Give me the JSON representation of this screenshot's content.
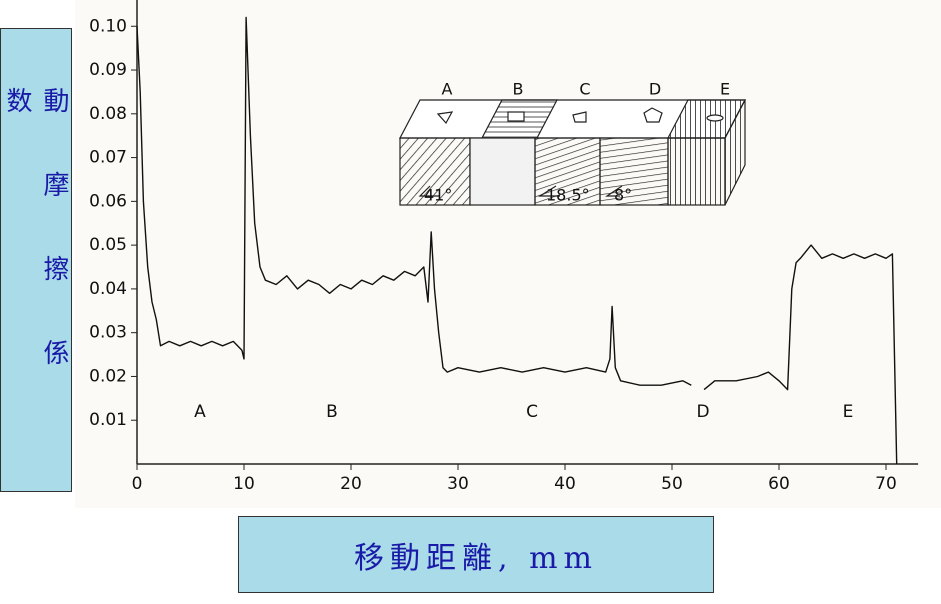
{
  "chart_data": {
    "type": "line",
    "y_label": "動摩擦係数",
    "x_label": "移動距離, mm",
    "xlim": [
      0,
      73
    ],
    "ylim": [
      0,
      0.106
    ],
    "xticks": [
      0,
      10,
      20,
      30,
      40,
      50,
      60,
      70
    ],
    "yticks": [
      0.01,
      0.02,
      0.03,
      0.04,
      0.05,
      0.06,
      0.07,
      0.08,
      0.09,
      {
        "value": 0.1,
        "label": "0.10"
      }
    ],
    "region_labels": [
      "A",
      "B",
      "C",
      "D",
      "E"
    ],
    "inset_labels": [
      "A",
      "B",
      "C",
      "D",
      "E"
    ],
    "inset_angles": [
      "41°",
      "18.5°",
      "8°"
    ],
    "series": [
      {
        "color": "#111111",
        "x": [
          0,
          0.3,
          0.6,
          1,
          1.4,
          1.8,
          2.2,
          3,
          4,
          5,
          6,
          7,
          8,
          9,
          9.8,
          10,
          10.2,
          10.6,
          11,
          11.5,
          12,
          13,
          14,
          15,
          16,
          17,
          18,
          19,
          20,
          21,
          22,
          23,
          24,
          25,
          26,
          26.8,
          27.2,
          27.5,
          27.8,
          28.2,
          28.6,
          29,
          30,
          32,
          34,
          36,
          38,
          40,
          42,
          43.8,
          44.2,
          44.4,
          44.7,
          45.2,
          47,
          49,
          51,
          51.8,
          52.4,
          53,
          54,
          56,
          58,
          59,
          60,
          60.8,
          61.2,
          61.6,
          62,
          63,
          64,
          65,
          66,
          67,
          68,
          69,
          70,
          70.6,
          71
        ],
        "values": [
          0.1,
          0.085,
          0.06,
          0.045,
          0.037,
          0.033,
          0.027,
          0.028,
          0.027,
          0.028,
          0.027,
          0.028,
          0.027,
          0.028,
          0.026,
          0.024,
          0.102,
          0.075,
          0.055,
          0.045,
          0.042,
          0.041,
          0.043,
          0.04,
          0.042,
          0.041,
          0.039,
          0.041,
          0.04,
          0.042,
          0.041,
          0.043,
          0.042,
          0.044,
          0.043,
          0.045,
          0.037,
          0.053,
          0.04,
          0.03,
          0.022,
          0.021,
          0.022,
          0.021,
          0.022,
          0.021,
          0.022,
          0.021,
          0.022,
          0.021,
          0.024,
          0.036,
          0.022,
          0.019,
          0.018,
          0.018,
          0.019,
          0.018,
          null,
          0.017,
          0.019,
          0.019,
          0.02,
          0.021,
          0.019,
          0.017,
          0.04,
          0.046,
          0.047,
          0.05,
          0.047,
          0.048,
          0.047,
          0.048,
          0.047,
          0.048,
          0.047,
          0.048,
          0
        ]
      }
    ],
    "grid": false
  }
}
